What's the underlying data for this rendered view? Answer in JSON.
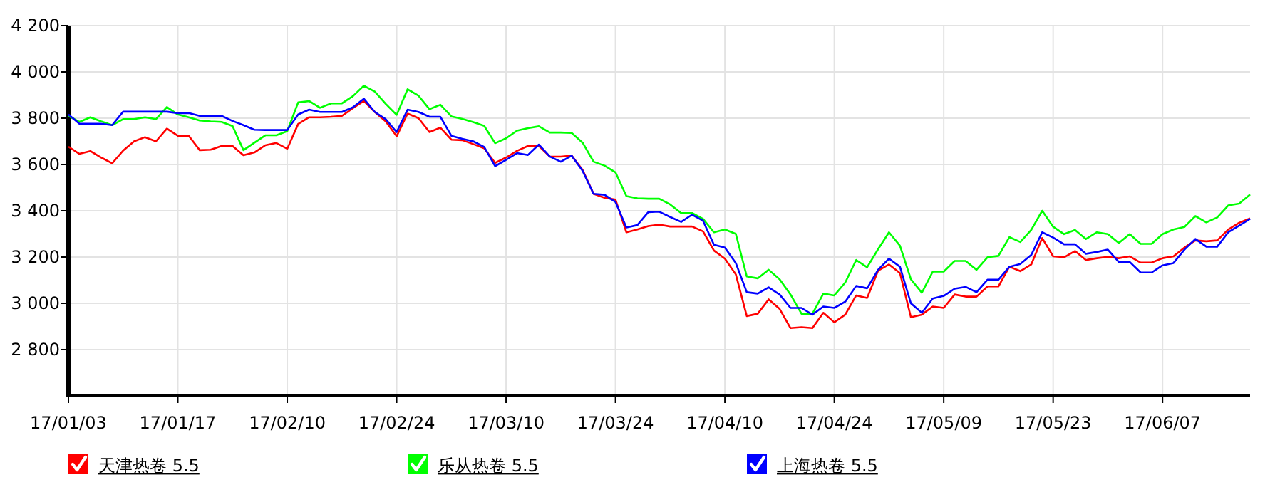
{
  "chart_data": {
    "type": "line",
    "categories": [
      "17/01/03",
      null,
      null,
      null,
      null,
      null,
      null,
      null,
      null,
      null,
      "17/01/17",
      null,
      null,
      null,
      null,
      null,
      null,
      null,
      null,
      null,
      "17/02/10",
      null,
      null,
      null,
      null,
      null,
      null,
      null,
      null,
      null,
      "17/02/24",
      null,
      null,
      null,
      null,
      null,
      null,
      null,
      null,
      null,
      "17/03/10",
      null,
      null,
      null,
      null,
      null,
      null,
      null,
      null,
      null,
      "17/03/24",
      null,
      null,
      null,
      null,
      null,
      null,
      null,
      null,
      null,
      "17/04/10",
      null,
      null,
      null,
      null,
      null,
      null,
      null,
      null,
      null,
      "17/04/24",
      null,
      null,
      null,
      null,
      null,
      null,
      null,
      null,
      null,
      "17/05/09",
      null,
      null,
      null,
      null,
      null,
      null,
      null,
      null,
      null,
      "17/05/23",
      null,
      null,
      null,
      null,
      null,
      null,
      null,
      null,
      null,
      "17/06/07",
      null,
      null,
      null,
      null,
      null,
      null,
      null,
      null
    ],
    "series": [
      {
        "name": "天津热卷 5.5",
        "color": "#ff0000",
        "values": [
          3677,
          3646,
          3658,
          3630,
          3605,
          3660,
          3700,
          3718,
          3700,
          3755,
          3724,
          3724,
          3662,
          3664,
          3680,
          3680,
          3640,
          3652,
          3683,
          3693,
          3668,
          3775,
          3804,
          3804,
          3806,
          3810,
          3843,
          3874,
          3827,
          3786,
          3722,
          3820,
          3800,
          3740,
          3759,
          3707,
          3705,
          3688,
          3670,
          3607,
          3630,
          3659,
          3680,
          3680,
          3634,
          3634,
          3638,
          3576,
          3473,
          3456,
          3448,
          3307,
          3319,
          3334,
          3340,
          3332,
          3332,
          3332,
          3311,
          3228,
          3193,
          3125,
          2945,
          2955,
          3017,
          2976,
          2893,
          2897,
          2893,
          2959,
          2918,
          2951,
          3034,
          3023,
          3141,
          3168,
          3131,
          2940,
          2951,
          2986,
          2980,
          3038,
          3029,
          3029,
          3073,
          3073,
          3158,
          3139,
          3168,
          3282,
          3203,
          3199,
          3226,
          3187,
          3195,
          3201,
          3195,
          3203,
          3176,
          3176,
          3195,
          3203,
          3241,
          3272,
          3268,
          3272,
          3319,
          3348,
          3367
        ]
      },
      {
        "name": "乐从热卷 5.5",
        "color": "#00ff00",
        "values": [
          3810,
          3784,
          3804,
          3786,
          3770,
          3796,
          3796,
          3804,
          3796,
          3848,
          3816,
          3804,
          3790,
          3786,
          3784,
          3766,
          3662,
          3694,
          3726,
          3726,
          3744,
          3868,
          3874,
          3845,
          3864,
          3864,
          3895,
          3940,
          3915,
          3862,
          3814,
          3925,
          3897,
          3839,
          3858,
          3808,
          3797,
          3783,
          3767,
          3692,
          3713,
          3746,
          3757,
          3765,
          3738,
          3738,
          3736,
          3694,
          3612,
          3595,
          3566,
          3463,
          3454,
          3452,
          3452,
          3427,
          3390,
          3390,
          3365,
          3307,
          3319,
          3300,
          3116,
          3108,
          3145,
          3104,
          3038,
          2955,
          2955,
          3042,
          3034,
          3090,
          3187,
          3156,
          3234,
          3307,
          3249,
          3104,
          3046,
          3137,
          3137,
          3183,
          3183,
          3145,
          3199,
          3205,
          3286,
          3265,
          3317,
          3400,
          3331,
          3299,
          3317,
          3278,
          3307,
          3299,
          3261,
          3299,
          3257,
          3257,
          3299,
          3319,
          3330,
          3377,
          3350,
          3371,
          3423,
          3431,
          3470
        ]
      },
      {
        "name": "上海热卷 5.5",
        "color": "#0000ff",
        "values": [
          3816,
          3776,
          3776,
          3776,
          3770,
          3828,
          3828,
          3828,
          3828,
          3828,
          3822,
          3822,
          3810,
          3810,
          3810,
          3788,
          3770,
          3750,
          3749,
          3749,
          3749,
          3816,
          3837,
          3827,
          3827,
          3827,
          3847,
          3884,
          3827,
          3796,
          3740,
          3837,
          3827,
          3806,
          3806,
          3724,
          3711,
          3700,
          3676,
          3593,
          3620,
          3649,
          3641,
          3686,
          3634,
          3612,
          3638,
          3572,
          3473,
          3469,
          3438,
          3328,
          3338,
          3394,
          3396,
          3373,
          3352,
          3383,
          3357,
          3253,
          3241,
          3174,
          3048,
          3042,
          3069,
          3038,
          2980,
          2980,
          2951,
          2986,
          2980,
          3007,
          3075,
          3065,
          3145,
          3193,
          3158,
          3000,
          2959,
          3021,
          3032,
          3063,
          3071,
          3048,
          3102,
          3102,
          3158,
          3170,
          3209,
          3307,
          3284,
          3255,
          3255,
          3214,
          3222,
          3232,
          3179,
          3179,
          3133,
          3133,
          3164,
          3174,
          3232,
          3278,
          3245,
          3245,
          3307,
          3336,
          3365
        ]
      }
    ],
    "ylim": [
      2600,
      4200
    ],
    "yticks": [
      {
        "value": 2800,
        "label": "2 800"
      },
      {
        "value": 3000,
        "label": "3 000"
      },
      {
        "value": 3200,
        "label": "3 200"
      },
      {
        "value": 3400,
        "label": "3 400"
      },
      {
        "value": 3600,
        "label": "3 600"
      },
      {
        "value": 3800,
        "label": "3 800"
      },
      {
        "value": 4000,
        "label": "4 000"
      },
      {
        "value": 4200,
        "label": "4 200"
      }
    ],
    "grid": true,
    "legend": "bottom"
  }
}
